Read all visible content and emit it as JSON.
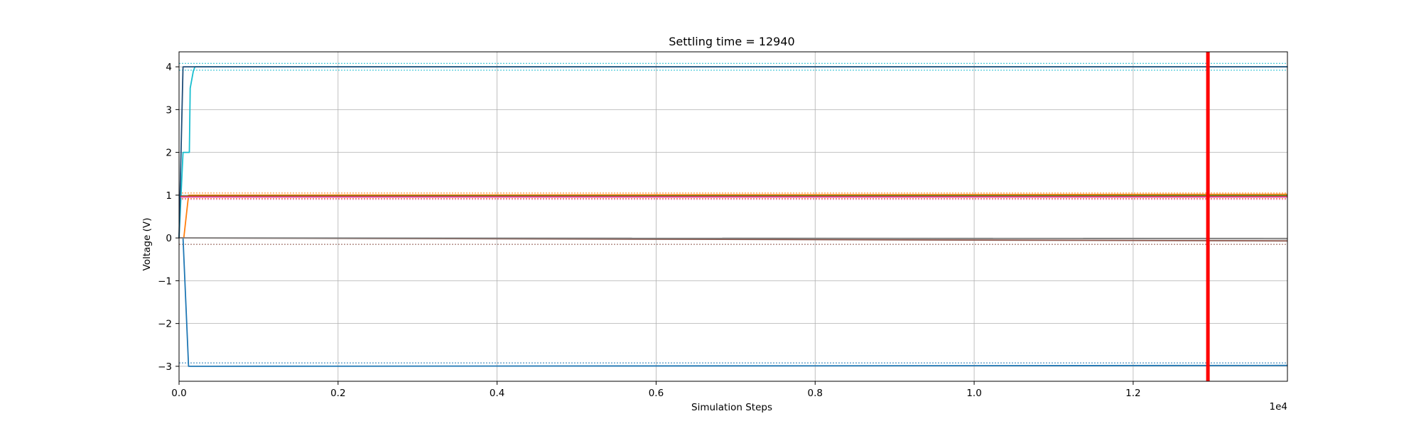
{
  "chart_data": {
    "type": "line",
    "title": "Settling time = 12940",
    "xlabel": "Simulation Steps",
    "ylabel": "Voltage (V)",
    "x_offset_label": "1e4",
    "xlim": [
      0,
      13940
    ],
    "ylim": [
      -3.35,
      4.35
    ],
    "x_ticks": [
      0,
      2000,
      4000,
      6000,
      8000,
      10000,
      12000
    ],
    "x_tick_labels": [
      "0.0",
      "0.2",
      "0.4",
      "0.6",
      "0.8",
      "1.0",
      "1.2"
    ],
    "y_ticks": [
      -3,
      -2,
      -1,
      0,
      1,
      2,
      3,
      4
    ],
    "y_tick_labels": [
      "−3",
      "−2",
      "−1",
      "0",
      "1",
      "2",
      "3",
      "4"
    ],
    "grid": true,
    "settling_marker": {
      "x": 12940,
      "color": "#ff0000"
    },
    "series": [
      {
        "color": "#1f77b4",
        "x": [
          0,
          50,
          120,
          400,
          13940
        ],
        "y": [
          0,
          0,
          -3.0,
          -3.0,
          -2.98
        ]
      },
      {
        "color": "#17becf",
        "x": [
          0,
          50,
          130,
          140,
          180,
          200,
          13940
        ],
        "y": [
          0,
          2.0,
          2.0,
          3.5,
          3.9,
          4.0,
          4.0
        ]
      },
      {
        "color": "#ff7f0e",
        "x": [
          0,
          60,
          120,
          13940
        ],
        "y": [
          0,
          0,
          1.0,
          1.02
        ]
      },
      {
        "color": "#2ca02c",
        "x": [
          0,
          120,
          13940
        ],
        "y": [
          0.98,
          0.98,
          0.99
        ]
      },
      {
        "color": "#d62728",
        "x": [
          0,
          13940
        ],
        "y": [
          0.97,
          0.97
        ]
      },
      {
        "color": "#8c564b",
        "x": [
          0,
          13940
        ],
        "y": [
          0.0,
          -0.07
        ]
      },
      {
        "color": "#7f7f7f",
        "x": [
          0,
          13940
        ],
        "y": [
          0.0,
          -0.02
        ]
      },
      {
        "color": "#e377c2",
        "x": [
          0,
          13940
        ],
        "y": [
          0.95,
          0.95
        ]
      },
      {
        "color": "#1f4e79",
        "x": [
          0,
          50,
          13940
        ],
        "y": [
          0,
          4.0,
          4.0
        ]
      }
    ],
    "tolerance_bands": [
      {
        "color": "#17becf",
        "y": [
          3.92,
          4.08
        ]
      },
      {
        "color": "#1f77b4",
        "y": [
          -2.92
        ]
      },
      {
        "color": "#ff7f0e",
        "y": [
          0.92,
          1.05
        ]
      },
      {
        "color": "#e377c2",
        "y": [
          0.9
        ]
      },
      {
        "color": "#8c564b",
        "y": [
          -0.15
        ]
      }
    ]
  }
}
